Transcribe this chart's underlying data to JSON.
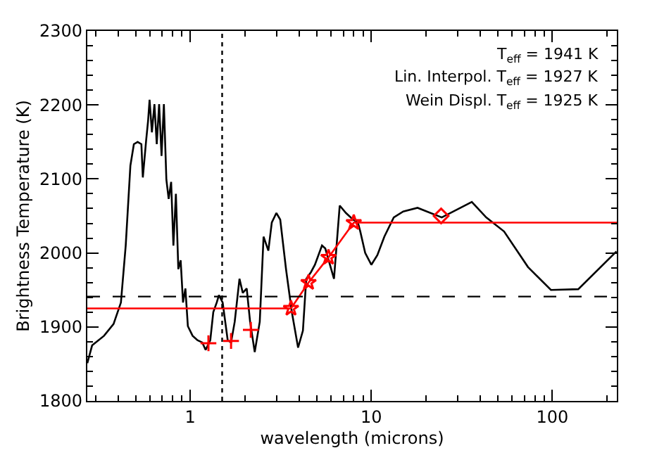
{
  "chart_data": {
    "type": "line",
    "xlabel": "wavelength (microns)",
    "ylabel": "Brightness Temperature (K)",
    "log": "x",
    "xlim": [
      0.27,
      227
    ],
    "ylim": [
      1800,
      2300
    ],
    "xticks": [
      {
        "value": 0.3,
        "label": null
      },
      {
        "value": 0.4,
        "label": null
      },
      {
        "value": 0.5,
        "label": null
      },
      {
        "value": 0.6,
        "label": null
      },
      {
        "value": 0.7,
        "label": null
      },
      {
        "value": 0.8,
        "label": null
      },
      {
        "value": 0.9,
        "label": null
      },
      1,
      {
        "value": 2,
        "label": null
      },
      {
        "value": 3,
        "label": null
      },
      {
        "value": 4,
        "label": null
      },
      {
        "value": 5,
        "label": null
      },
      {
        "value": 6,
        "label": null
      },
      {
        "value": 7,
        "label": null
      },
      {
        "value": 8,
        "label": null
      },
      {
        "value": 9,
        "label": null
      },
      10,
      {
        "value": 20,
        "label": null
      },
      {
        "value": 30,
        "label": null
      },
      {
        "value": 40,
        "label": null
      },
      {
        "value": 50,
        "label": null
      },
      {
        "value": 60,
        "label": null
      },
      {
        "value": 70,
        "label": null
      },
      {
        "value": 80,
        "label": null
      },
      {
        "value": 90,
        "label": null
      },
      100,
      {
        "value": 200,
        "label": null
      }
    ],
    "yticks": [
      1800,
      {
        "value": 1820,
        "label": null
      },
      {
        "value": 1840,
        "label": null
      },
      {
        "value": 1860,
        "label": null
      },
      {
        "value": 1880,
        "label": null
      },
      1900,
      {
        "value": 1920,
        "label": null
      },
      {
        "value": 1940,
        "label": null
      },
      {
        "value": 1960,
        "label": null
      },
      {
        "value": 1980,
        "label": null
      },
      2000,
      {
        "value": 2020,
        "label": null
      },
      {
        "value": 2040,
        "label": null
      },
      {
        "value": 2060,
        "label": null
      },
      {
        "value": 2080,
        "label": null
      },
      2100,
      {
        "value": 2120,
        "label": null
      },
      {
        "value": 2140,
        "label": null
      },
      {
        "value": 2160,
        "label": null
      },
      {
        "value": 2180,
        "label": null
      },
      2200,
      {
        "value": 2220,
        "label": null
      },
      {
        "value": 2240,
        "label": null
      },
      {
        "value": 2260,
        "label": null
      },
      {
        "value": 2280,
        "label": null
      },
      2300
    ],
    "series": [
      {
        "color": "#000000",
        "marker": "none",
        "line_style": "solid",
        "x": [
          0.27,
          0.287,
          0.334,
          0.377,
          0.414,
          0.44,
          0.467,
          0.488,
          0.512,
          0.537,
          0.547,
          0.571,
          0.585,
          0.596,
          0.614,
          0.634,
          0.653,
          0.673,
          0.694,
          0.715,
          0.738,
          0.76,
          0.784,
          0.807,
          0.833,
          0.859,
          0.885,
          0.912,
          0.94,
          0.97,
          1.03,
          1.096,
          1.165,
          1.216,
          1.29,
          1.34,
          1.4,
          1.44,
          1.51,
          1.61,
          1.68,
          1.76,
          1.87,
          1.95,
          2.05,
          2.14,
          2.27,
          2.42,
          2.54,
          2.7,
          2.82,
          2.99,
          3.14,
          3.38,
          3.64,
          3.94,
          4.19,
          4.37,
          4.64,
          4.88,
          5.34,
          5.57,
          6.22,
          6.69,
          7.24,
          7.93,
          8.43,
          8.69,
          9.25,
          10,
          10.8,
          11.8,
          13.3,
          15.0,
          18.0,
          24.5,
          35.9,
          43.1,
          54.1,
          73.3,
          98.2,
          139,
          226
        ],
        "values": [
          1851,
          1875,
          1888,
          1904,
          1933,
          2010,
          2118,
          2147,
          2150,
          2147,
          2102,
          2153,
          2179,
          2207,
          2163,
          2201,
          2147,
          2201,
          2131,
          2201,
          2099,
          2073,
          2096,
          2010,
          2080,
          1978,
          1990,
          1933,
          1952,
          1901,
          1888,
          1882,
          1879,
          1869,
          1882,
          1920,
          1933,
          1943,
          1933,
          1882,
          1879,
          1907,
          1965,
          1946,
          1952,
          1907,
          1866,
          1907,
          2022,
          2003,
          2041,
          2054,
          2045,
          1978,
          1920,
          1872,
          1895,
          1965,
          1974,
          1984,
          2010,
          2006,
          1965,
          2064,
          2054,
          2045,
          2041,
          2029,
          2000,
          1984,
          1997,
          2022,
          2048,
          2056,
          2061,
          2048,
          2069,
          2048,
          2029,
          1981,
          1950,
          1951,
          2002
        ]
      },
      {
        "color": "#ff0000",
        "marker": "none",
        "line_style": "solid",
        "x": [
          0.27,
          3.6,
          4.5,
          5.8,
          8.0,
          227
        ],
        "values": [
          1925,
          1925,
          1960,
          1994,
          2041,
          2041
        ]
      },
      {
        "type": "scatter",
        "color": "#ff0000",
        "marker": "star",
        "x": [
          3.6,
          4.5,
          5.8,
          8.0
        ],
        "values": [
          1925,
          1960,
          1994,
          2041
        ]
      },
      {
        "type": "scatter",
        "color": "#ff0000",
        "marker": "cross",
        "x": [
          1.26,
          1.68,
          2.16
        ],
        "values": [
          1878,
          1881,
          1896
        ]
      },
      {
        "type": "scatter",
        "color": "#ff0000",
        "marker": "diamond",
        "x": [
          24.3
        ],
        "values": [
          2050
        ]
      }
    ],
    "ref_lines": [
      {
        "axis": "y",
        "value": 1941,
        "color": "#000000",
        "line_style": "dashed"
      },
      {
        "axis": "x",
        "value": 1.5,
        "color": "#000000",
        "line_style": "dotted"
      }
    ],
    "annotations": [
      "T$_{eff}$ = 1941 K",
      "Lin. Interpol. T$_{eff}$ = 1927 K",
      "Wein Displ. T$_{eff}$ = 1925 K"
    ]
  }
}
